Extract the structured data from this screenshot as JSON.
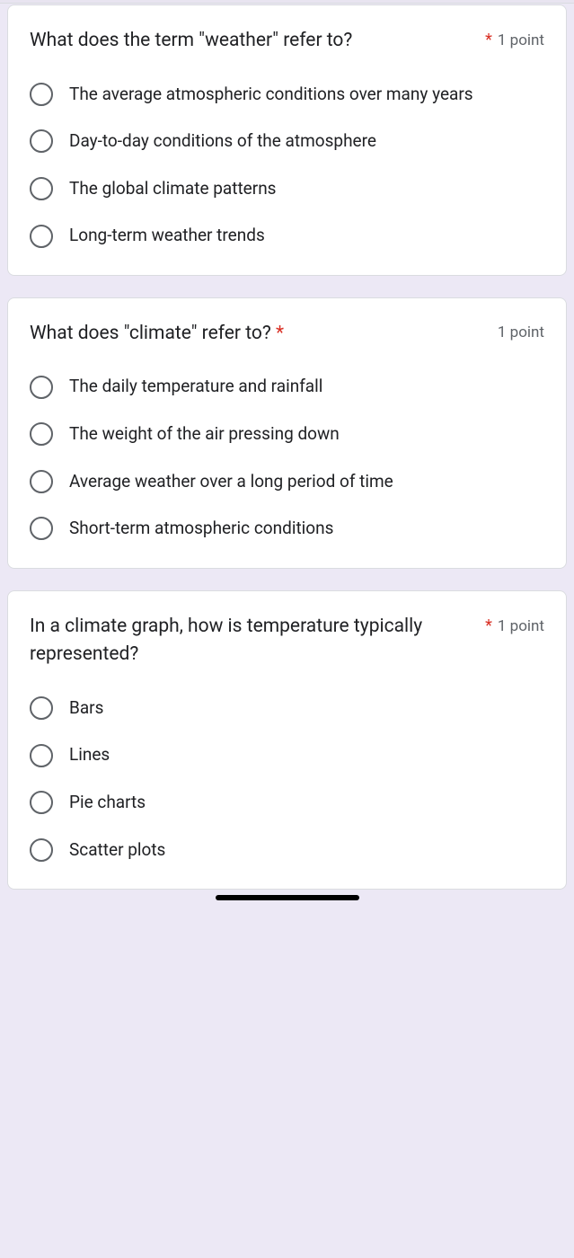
{
  "colors": {
    "page_bg": "#ece8f5",
    "card_bg": "#ffffff",
    "card_border": "#dadce0",
    "text_primary": "#202124",
    "text_secondary": "#5f6368",
    "required": "#d93025",
    "radio_border": "#5f6368"
  },
  "questions": [
    {
      "title": "What does the term \"weather\" refer to?",
      "required": true,
      "points": "1 point",
      "options": [
        "The average atmospheric conditions over many years",
        "Day-to-day conditions of the atmosphere",
        "The global climate patterns",
        "Long-term weather trends"
      ]
    },
    {
      "title": "What does \"climate\" refer to?",
      "required": true,
      "points": "1 point",
      "required_inline": true,
      "options": [
        "The daily temperature and rainfall",
        "The weight of the air pressing down",
        "Average weather over a long period of time",
        "Short-term atmospheric conditions"
      ]
    },
    {
      "title": "In a climate graph, how is temperature typically represented?",
      "required": true,
      "points": "1 point",
      "options": [
        "Bars",
        "Lines",
        "Pie charts",
        "Scatter plots"
      ]
    }
  ]
}
